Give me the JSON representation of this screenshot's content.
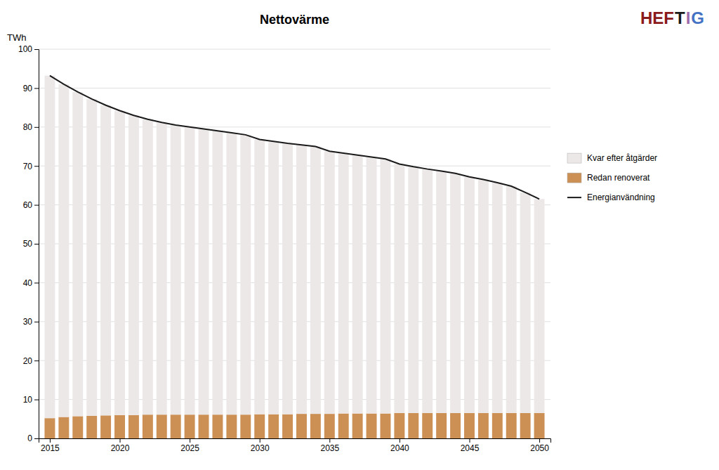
{
  "chart_data": {
    "type": "bar",
    "stacked": true,
    "title": "Nettovärme",
    "y_label": "TWh",
    "x": [
      2015,
      2016,
      2017,
      2018,
      2019,
      2020,
      2021,
      2022,
      2023,
      2024,
      2025,
      2026,
      2027,
      2028,
      2029,
      2030,
      2031,
      2032,
      2033,
      2034,
      2035,
      2036,
      2037,
      2038,
      2039,
      2040,
      2041,
      2042,
      2043,
      2044,
      2045,
      2046,
      2047,
      2048,
      2049,
      2050
    ],
    "series": [
      {
        "name": "Redan renoverat",
        "type": "bar",
        "color": "#CC9055",
        "values": [
          5.2,
          5.5,
          5.7,
          5.8,
          5.9,
          6.0,
          6.0,
          6.1,
          6.1,
          6.1,
          6.1,
          6.1,
          6.1,
          6.1,
          6.1,
          6.2,
          6.2,
          6.2,
          6.3,
          6.3,
          6.3,
          6.4,
          6.4,
          6.4,
          6.4,
          6.5,
          6.5,
          6.5,
          6.5,
          6.5,
          6.5,
          6.5,
          6.5,
          6.5,
          6.5,
          6.5
        ]
      },
      {
        "name": "Kvar efter åtgärder",
        "type": "bar",
        "color": "#EDE8E8",
        "values": [
          88.0,
          85.5,
          83.3,
          81.4,
          79.7,
          78.2,
          77.0,
          75.9,
          75.1,
          74.4,
          73.9,
          73.4,
          72.9,
          72.4,
          71.9,
          70.6,
          70.1,
          69.6,
          69.1,
          68.7,
          67.5,
          66.9,
          66.4,
          65.9,
          65.4,
          64.0,
          63.3,
          62.7,
          62.2,
          61.6,
          60.7,
          60.0,
          59.2,
          58.3,
          56.7,
          55.0
        ]
      },
      {
        "name": "Energianvändning",
        "type": "line",
        "color": "#1A1A1A",
        "values": [
          93.2,
          91.0,
          89.0,
          87.2,
          85.6,
          84.2,
          83.0,
          82.0,
          81.2,
          80.5,
          80.0,
          79.5,
          79.0,
          78.5,
          78.0,
          76.8,
          76.3,
          75.8,
          75.4,
          75.0,
          73.8,
          73.3,
          72.8,
          72.3,
          71.8,
          70.5,
          69.8,
          69.2,
          68.7,
          68.1,
          67.2,
          66.5,
          65.7,
          64.8,
          63.2,
          61.5
        ]
      }
    ],
    "xlim": [
      2014.2,
      2050.8
    ],
    "xticks": [
      2015,
      2020,
      2025,
      2030,
      2035,
      2040,
      2045,
      2050
    ],
    "ylim": [
      0,
      100
    ],
    "yticks": [
      0,
      10,
      20,
      30,
      40,
      50,
      60,
      70,
      80,
      90,
      100
    ],
    "grid": true,
    "annotations": [
      {
        "text": "HEF",
        "color": "#8B1A1A"
      },
      {
        "text": "T",
        "color": "#1A1A1A"
      },
      {
        "text": "I",
        "color": "#9B6BAA"
      },
      {
        "text": "G",
        "color": "#4472C4"
      }
    ]
  }
}
